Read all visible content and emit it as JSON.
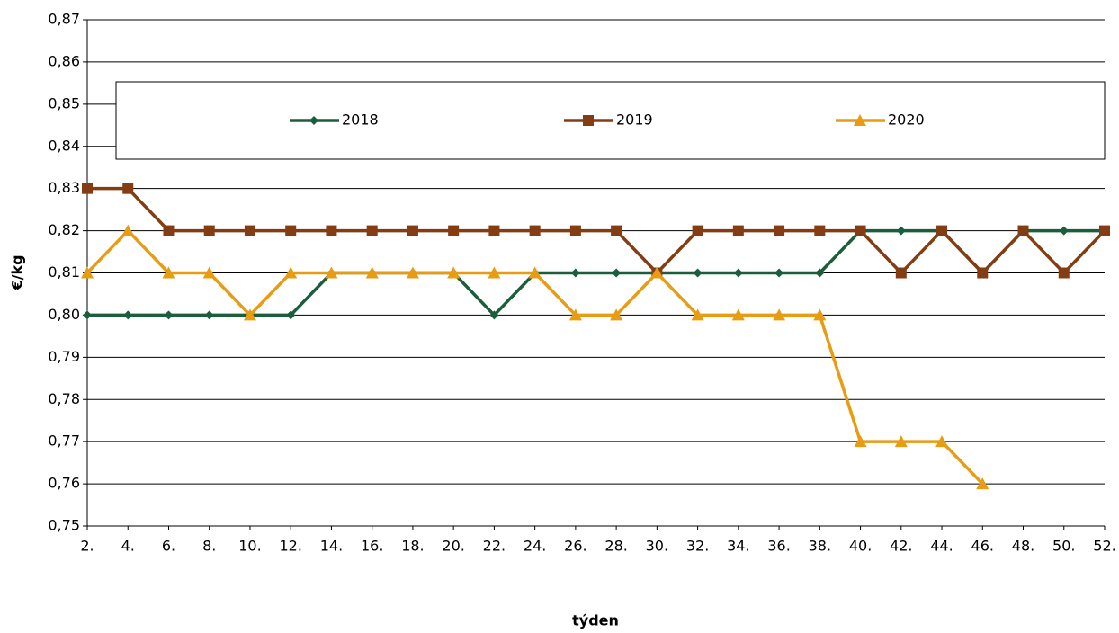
{
  "chart_data": {
    "type": "line",
    "x_label": "týden",
    "y_label": "€/kg",
    "categories": [
      "2.",
      "4.",
      "6.",
      "8.",
      "10.",
      "12.",
      "14.",
      "16.",
      "18.",
      "20.",
      "22.",
      "24.",
      "26.",
      "28.",
      "30.",
      "32.",
      "34.",
      "36.",
      "38.",
      "40.",
      "42.",
      "44.",
      "46.",
      "48.",
      "50.",
      "52."
    ],
    "series": [
      {
        "name": "2018",
        "color": "#1b5e3b",
        "marker": "diamond",
        "values": [
          0.8,
          0.8,
          0.8,
          0.8,
          0.8,
          0.8,
          0.81,
          0.81,
          0.81,
          0.81,
          0.8,
          0.81,
          0.81,
          0.81,
          0.81,
          0.81,
          0.81,
          0.81,
          0.81,
          0.82,
          0.82,
          0.82,
          0.81,
          0.82,
          0.82,
          0.82
        ]
      },
      {
        "name": "2019",
        "color": "#843c12",
        "marker": "square",
        "values": [
          0.83,
          0.83,
          0.82,
          0.82,
          0.82,
          0.82,
          0.82,
          0.82,
          0.82,
          0.82,
          0.82,
          0.82,
          0.82,
          0.82,
          0.81,
          0.82,
          0.82,
          0.82,
          0.82,
          0.82,
          0.81,
          0.82,
          0.81,
          0.82,
          0.81,
          0.82
        ]
      },
      {
        "name": "2020",
        "color": "#e89c14",
        "marker": "triangle",
        "values": [
          0.81,
          0.82,
          0.81,
          0.81,
          0.8,
          0.81,
          0.81,
          0.81,
          0.81,
          0.81,
          0.81,
          0.81,
          0.8,
          0.8,
          0.81,
          0.8,
          0.8,
          0.8,
          0.8,
          0.77,
          0.77,
          0.77,
          0.76,
          null,
          null,
          null
        ]
      }
    ],
    "ylim": [
      0.75,
      0.87
    ],
    "yticks": [
      {
        "value": 0.75,
        "label": "0,75"
      },
      {
        "value": 0.76,
        "label": "0,76"
      },
      {
        "value": 0.77,
        "label": "0,77"
      },
      {
        "value": 0.78,
        "label": "0,78"
      },
      {
        "value": 0.79,
        "label": "0,79"
      },
      {
        "value": 0.8,
        "label": "0,80"
      },
      {
        "value": 0.81,
        "label": "0,81"
      },
      {
        "value": 0.82,
        "label": "0,82"
      },
      {
        "value": 0.83,
        "label": "0,83"
      },
      {
        "value": 0.84,
        "label": "0,84"
      },
      {
        "value": 0.85,
        "label": "0,85"
      },
      {
        "value": 0.86,
        "label": "0,86"
      },
      {
        "value": 0.87,
        "label": "0,87"
      }
    ],
    "grid": true,
    "legend": "top"
  }
}
